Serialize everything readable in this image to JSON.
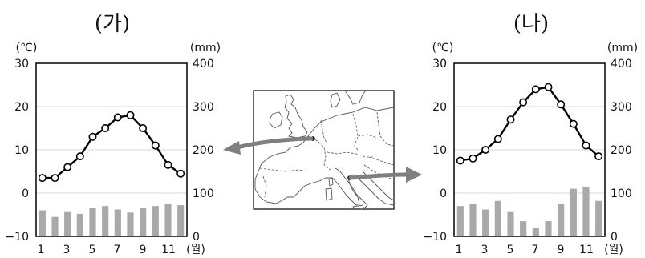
{
  "colors": {
    "grid": "#d7d7d7",
    "axis": "#000000",
    "bar": "#a9a9a9",
    "line": "#000000",
    "marker_fill": "#ffffff",
    "arrow": "#7f7f7f",
    "map_border": "#555555"
  },
  "chart_data": [
    {
      "type": "bar+line",
      "title": "(가)",
      "ylabel_left": "(℃)",
      "ylabel_right": "(mm)",
      "xunit": "(월)",
      "x": [
        1,
        2,
        3,
        4,
        5,
        6,
        7,
        8,
        9,
        10,
        11,
        12
      ],
      "x_tick_labels": [
        "1",
        "3",
        "5",
        "7",
        "9",
        "11"
      ],
      "y_left_ticks": [
        "30",
        "20",
        "10",
        "0",
        "−10"
      ],
      "y_right_ticks": [
        "400",
        "300",
        "200",
        "100",
        "0"
      ],
      "ylim_left": [
        -10,
        30
      ],
      "ylim_right": [
        0,
        400
      ],
      "grid": true,
      "temperature": [
        3.5,
        3.5,
        6,
        8.5,
        13,
        15,
        17.5,
        18,
        15,
        11,
        6.5,
        4.5
      ],
      "precipitation": [
        60,
        45,
        58,
        52,
        65,
        70,
        62,
        55,
        65,
        70,
        75,
        72
      ]
    },
    {
      "type": "bar+line",
      "title": "(나)",
      "ylabel_left": "(℃)",
      "ylabel_right": "(mm)",
      "xunit": "(월)",
      "x": [
        1,
        2,
        3,
        4,
        5,
        6,
        7,
        8,
        9,
        10,
        11,
        12
      ],
      "x_tick_labels": [
        "1",
        "3",
        "5",
        "7",
        "9",
        "11"
      ],
      "y_left_ticks": [
        "30",
        "20",
        "10",
        "0",
        "−10"
      ],
      "y_right_ticks": [
        "400",
        "300",
        "200",
        "100",
        "0"
      ],
      "ylim_left": [
        -10,
        30
      ],
      "ylim_right": [
        0,
        400
      ],
      "grid": true,
      "temperature": [
        7.5,
        8,
        10,
        12.5,
        17,
        21,
        24,
        24.5,
        20.5,
        16,
        11,
        8.5
      ],
      "precipitation": [
        70,
        75,
        62,
        82,
        58,
        35,
        20,
        35,
        75,
        110,
        115,
        82
      ]
    }
  ]
}
